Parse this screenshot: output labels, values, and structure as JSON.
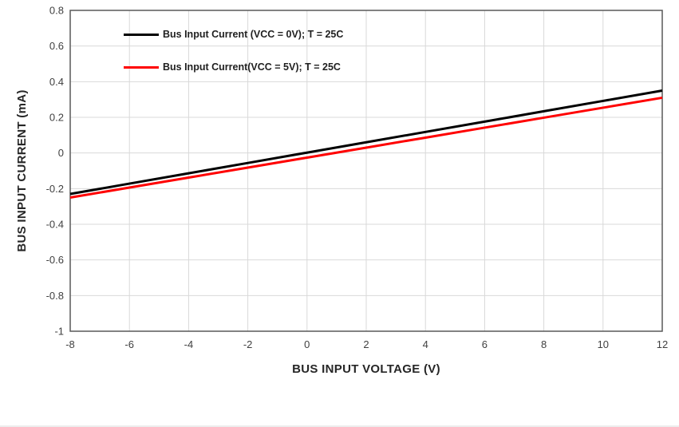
{
  "chart_data": {
    "type": "line",
    "title": "",
    "xlabel": "BUS INPUT VOLTAGE (V)",
    "ylabel": "BUS INPUT CURRENT (mA)",
    "xlim": [
      -8,
      12
    ],
    "ylim": [
      -1,
      0.8
    ],
    "grid": true,
    "legend_position": "inside-top-left",
    "x_ticks": [
      -8,
      -6,
      -4,
      -2,
      0,
      2,
      4,
      6,
      8,
      10,
      12
    ],
    "x_tick_labels": [
      "-8",
      "-6",
      "-4",
      "-2",
      "0",
      "2",
      "4",
      "6",
      "8",
      "10",
      "12"
    ],
    "y_ticks": [
      0.8,
      0.6,
      0.4,
      0.2,
      0,
      -0.2,
      -0.4,
      -0.6,
      -0.8,
      -1
    ],
    "y_tick_labels": [
      "0.8",
      "0.6",
      "0.4",
      "0.2",
      "0",
      "-0.2",
      "-0.4",
      "-0.6",
      "-0.8",
      "-1"
    ],
    "x": [
      -8,
      -6,
      -4,
      -2,
      0,
      2,
      4,
      6,
      8,
      10,
      12
    ],
    "series": [
      {
        "name": "Bus Input Current (VCC = 0V); T = 25C",
        "color": "#000000",
        "values": [
          -0.23,
          -0.172,
          -0.114,
          -0.056,
          0.002,
          0.06,
          0.118,
          0.176,
          0.234,
          0.292,
          0.35
        ]
      },
      {
        "name": "Bus Input Current(VCC = 5V); T = 25C",
        "color": "#ff0000",
        "values": [
          -0.25,
          -0.194,
          -0.138,
          -0.082,
          -0.026,
          0.03,
          0.086,
          0.142,
          0.198,
          0.254,
          0.31
        ]
      }
    ]
  },
  "colors": {
    "grid": "#d9d9d9",
    "plot_border": "#595959",
    "tick_text": "#404040",
    "axis_title_text": "#262626",
    "background": "#ffffff"
  }
}
